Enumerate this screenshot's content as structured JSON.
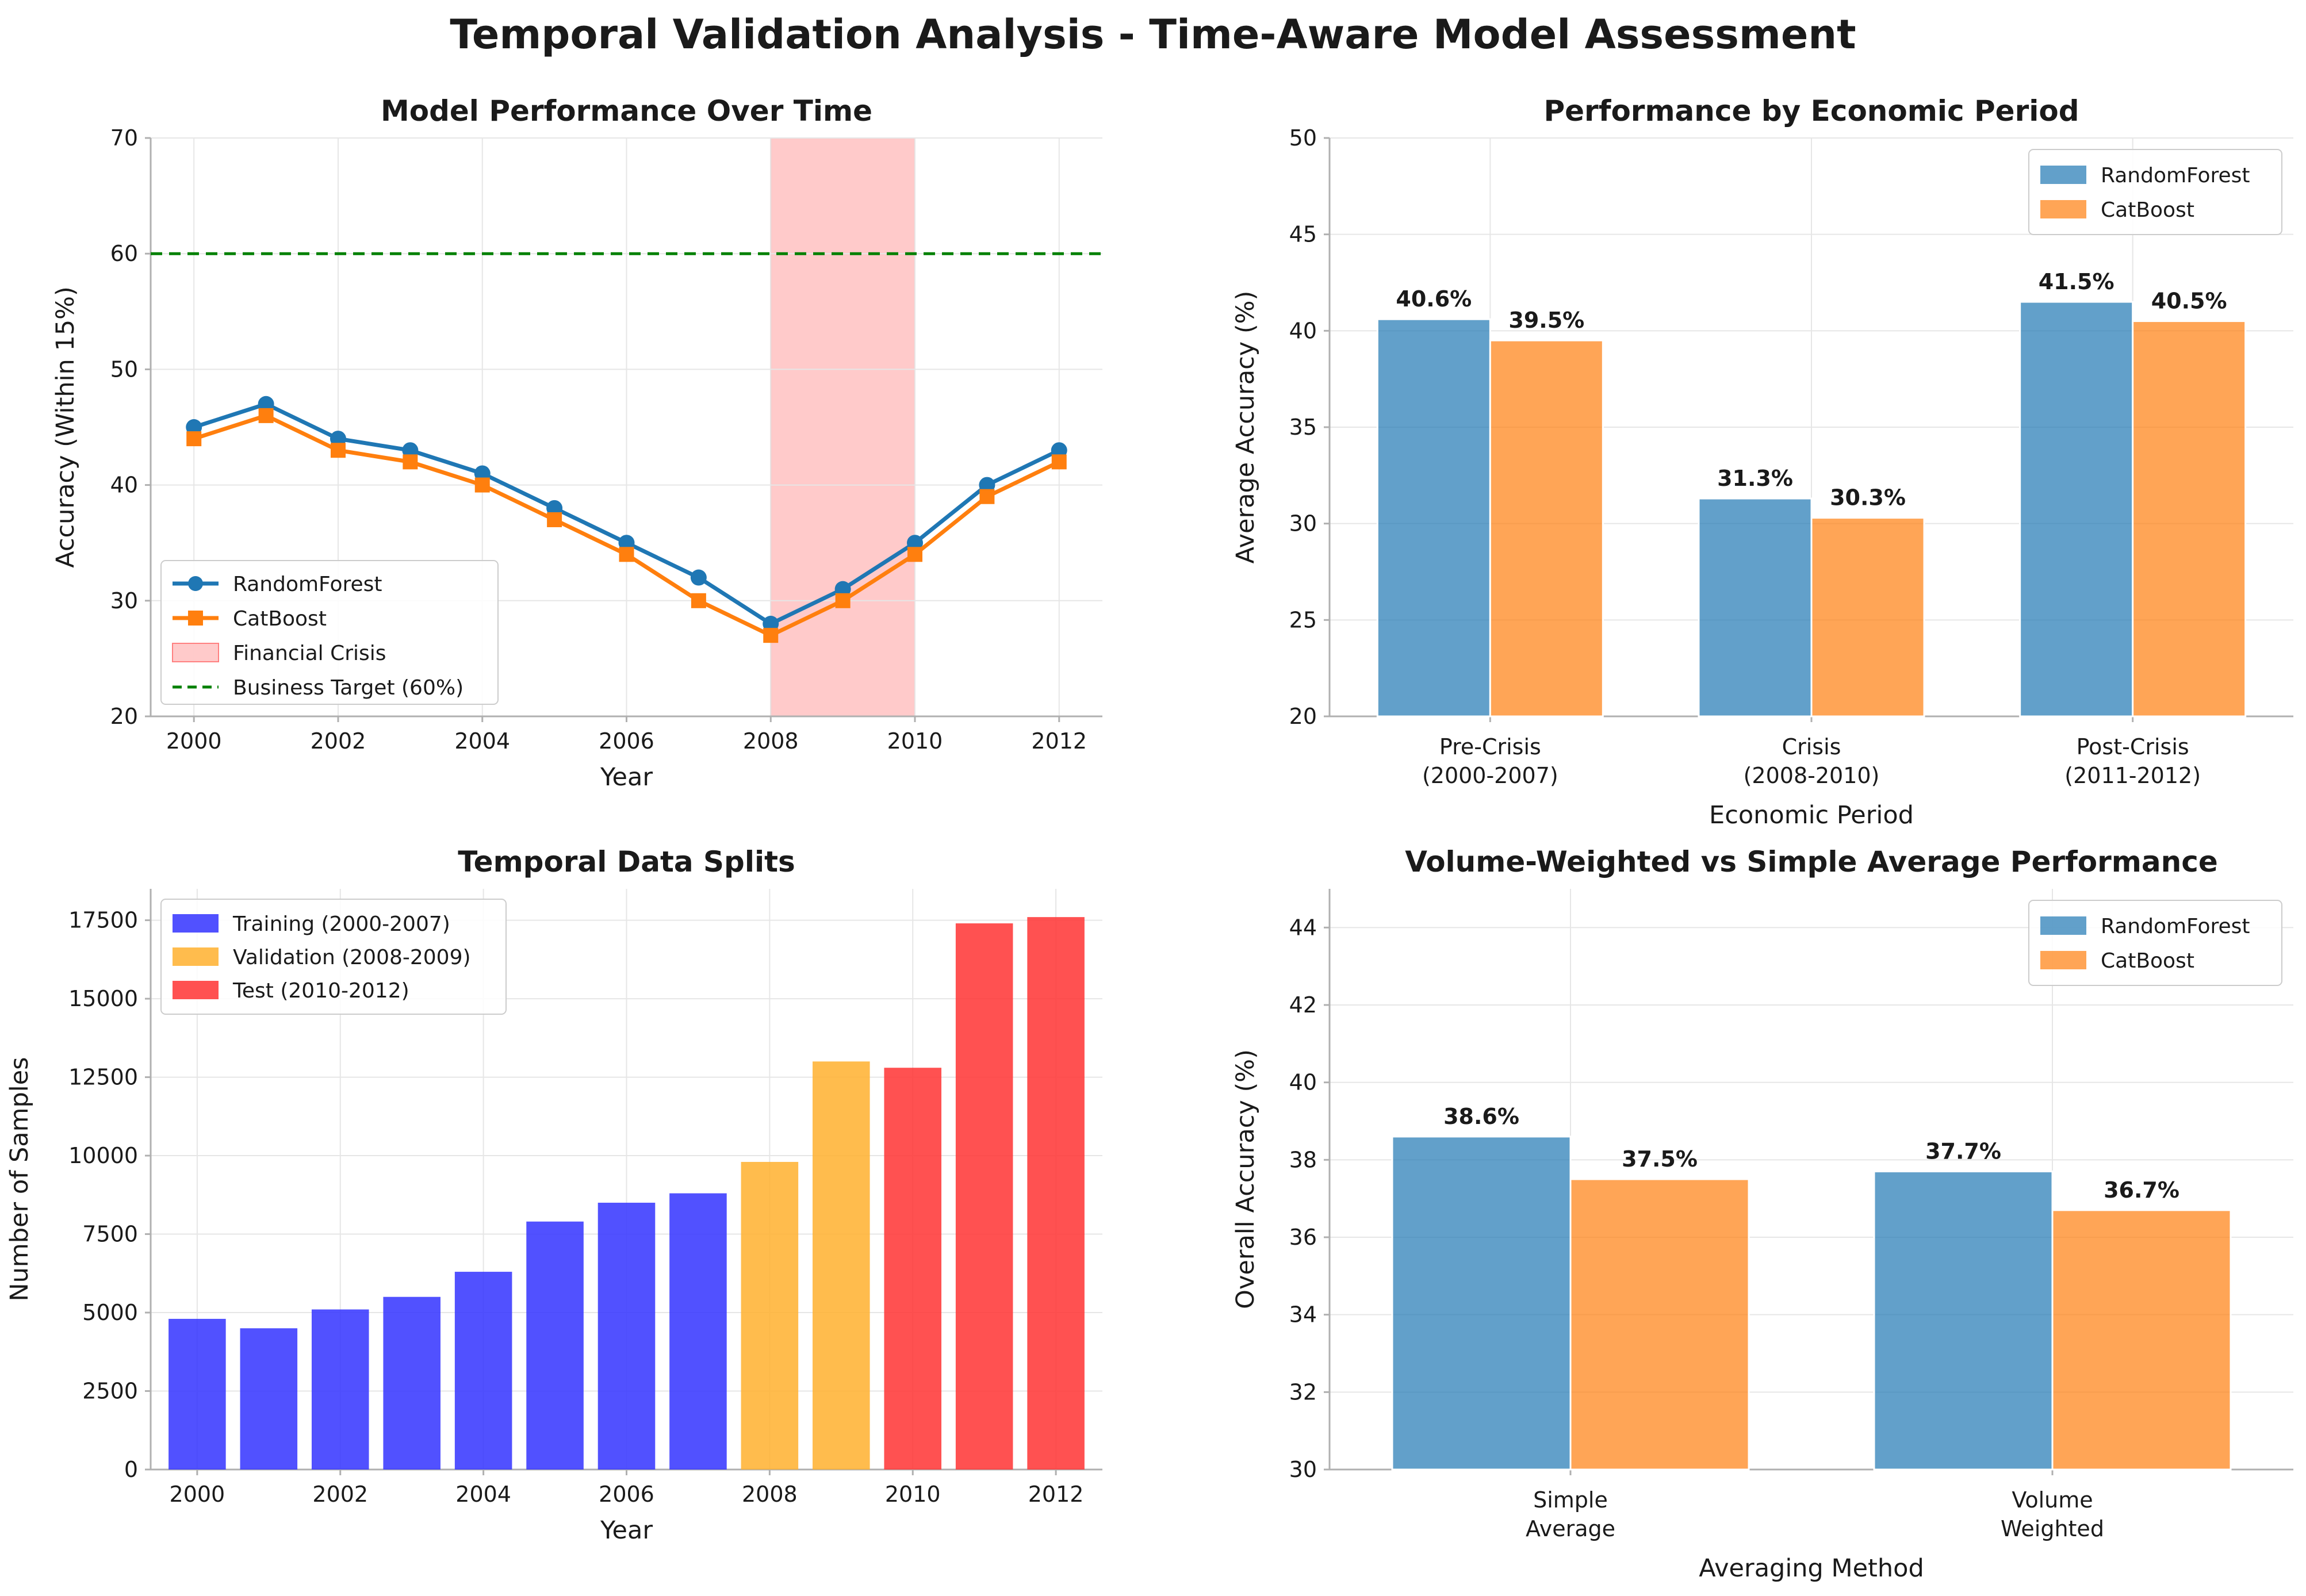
{
  "title": "Temporal Validation Analysis - Time-Aware Model Assessment",
  "colors": {
    "randomforest": "#1f77b4",
    "catboost": "#ff7f0e",
    "crisis_band": "#ffb3b3",
    "target": "#008000",
    "training": "#3333ff",
    "validation": "#ffb02e",
    "test": "#ff3333"
  },
  "chart_data": [
    {
      "type": "line",
      "title": "Model Performance Over Time",
      "xlabel": "Year",
      "ylabel": "Accuracy (Within 15%)",
      "xlim": [
        1999.4,
        2012.6
      ],
      "ylim": [
        20,
        70
      ],
      "xticks": [
        2000,
        2002,
        2004,
        2006,
        2008,
        2010,
        2012
      ],
      "yticks": [
        20,
        30,
        40,
        50,
        60,
        70
      ],
      "x": [
        2000,
        2001,
        2002,
        2003,
        2004,
        2005,
        2006,
        2007,
        2008,
        2009,
        2010,
        2011,
        2012
      ],
      "series": [
        {
          "name": "RandomForest",
          "marker": "circle",
          "values": [
            45,
            47,
            44,
            43,
            41,
            38,
            35,
            32,
            28,
            31,
            35,
            40,
            43
          ]
        },
        {
          "name": "CatBoost",
          "marker": "square",
          "values": [
            44,
            46,
            43,
            42,
            40,
            37,
            34,
            30,
            27,
            30,
            34,
            39,
            42
          ]
        }
      ],
      "band": {
        "name": "Financial Crisis",
        "x_start": 2008,
        "x_end": 2010
      },
      "hline": {
        "name": "Business Target (60%)",
        "y": 60
      },
      "legend": "lower-left",
      "grid": true
    },
    {
      "type": "bar",
      "title": "Performance by Economic Period",
      "xlabel": "Economic Period",
      "ylabel": "Average Accuracy (%)",
      "ylim": [
        20,
        50
      ],
      "yticks": [
        20,
        25,
        30,
        35,
        40,
        45,
        50
      ],
      "categories": [
        [
          "Pre-Crisis",
          "(2000-2007)"
        ],
        [
          "Crisis",
          "(2008-2010)"
        ],
        [
          "Post-Crisis",
          "(2011-2012)"
        ]
      ],
      "series": [
        {
          "name": "RandomForest",
          "values": [
            40.6,
            31.3,
            41.5
          ],
          "labels": [
            "40.6%",
            "31.3%",
            "41.5%"
          ]
        },
        {
          "name": "CatBoost",
          "values": [
            39.5,
            30.3,
            40.5
          ],
          "labels": [
            "39.5%",
            "30.3%",
            "40.5%"
          ]
        }
      ],
      "legend": "top-right",
      "grid": true
    },
    {
      "type": "bar",
      "title": "Temporal Data Splits",
      "xlabel": "Year",
      "ylabel": "Number of Samples",
      "xlim": [
        1999.35,
        2012.65
      ],
      "ylim": [
        0,
        18500
      ],
      "xticks": [
        2000,
        2002,
        2004,
        2006,
        2008,
        2010,
        2012
      ],
      "yticks": [
        0,
        2500,
        5000,
        7500,
        10000,
        12500,
        15000,
        17500
      ],
      "x": [
        2000,
        2001,
        2002,
        2003,
        2004,
        2005,
        2006,
        2007,
        2008,
        2009,
        2010,
        2011,
        2012
      ],
      "values": [
        4800,
        4500,
        5100,
        5500,
        6300,
        7900,
        8500,
        8800,
        9800,
        13000,
        12800,
        17400,
        17600
      ],
      "split": [
        "training",
        "training",
        "training",
        "training",
        "training",
        "training",
        "training",
        "training",
        "validation",
        "validation",
        "test",
        "test",
        "test"
      ],
      "legend_entries": [
        {
          "key": "training",
          "name": "Training (2000-2007)"
        },
        {
          "key": "validation",
          "name": "Validation (2008-2009)"
        },
        {
          "key": "test",
          "name": "Test (2010-2012)"
        }
      ],
      "legend": "top-left",
      "grid": true
    },
    {
      "type": "bar",
      "title": "Volume-Weighted vs Simple Average Performance",
      "xlabel": "Averaging Method",
      "ylabel": "Overall Accuracy (%)",
      "ylim": [
        30,
        45
      ],
      "yticks": [
        30,
        32,
        34,
        36,
        38,
        40,
        42,
        44
      ],
      "categories": [
        [
          "Simple",
          "Average"
        ],
        [
          "Volume",
          "Weighted"
        ]
      ],
      "series": [
        {
          "name": "RandomForest",
          "values": [
            38.6,
            37.7
          ],
          "labels": [
            "38.6%",
            "37.7%"
          ]
        },
        {
          "name": "CatBoost",
          "values": [
            37.5,
            36.7
          ],
          "labels": [
            "37.5%",
            "36.7%"
          ]
        }
      ],
      "legend": "top-right",
      "grid": true
    }
  ]
}
